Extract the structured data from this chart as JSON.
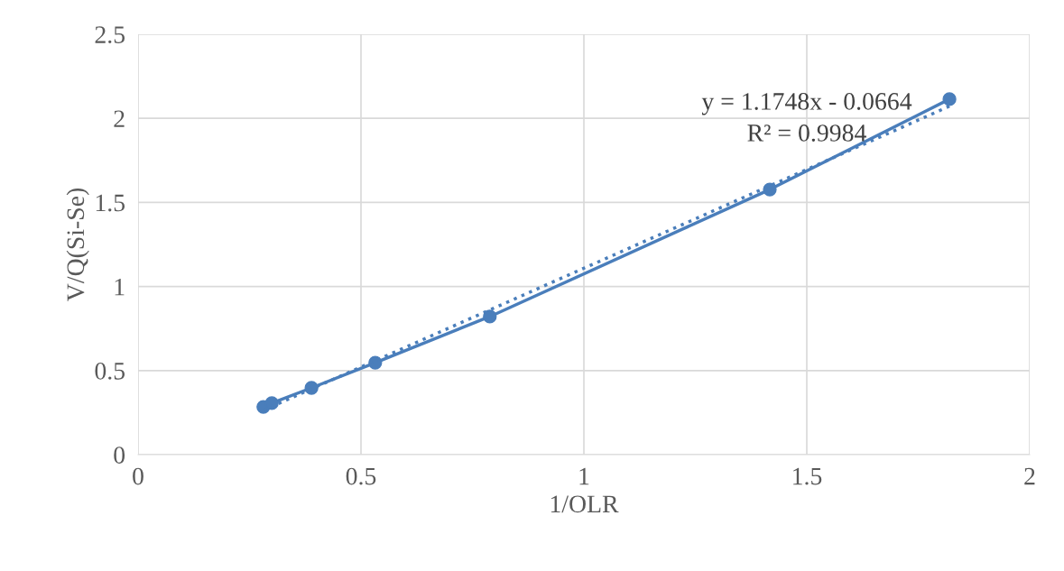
{
  "chart_data": {
    "type": "line",
    "xlabel": "1/OLR",
    "ylabel": "V/Q(Si-Se)",
    "series": [
      {
        "color": "#4a7ebb",
        "marker": "circle",
        "line_style": "solid",
        "x": [
          0.281,
          0.3,
          0.389,
          0.532,
          0.789,
          1.417,
          1.82
        ],
        "values": [
          0.284,
          0.306,
          0.397,
          0.547,
          0.821,
          1.577,
          2.114
        ]
      },
      {
        "color": "#4a7ebb",
        "marker": "none",
        "line_style": "dotted",
        "x": [
          0.281,
          1.82
        ],
        "values": [
          0.264,
          2.072
        ]
      }
    ],
    "annotations": [
      "y = 1.1748x - 0.0664",
      "R² = 0.9984"
    ],
    "xlim": [
      0,
      2
    ],
    "xticks": [
      0,
      0.5,
      1,
      1.5,
      2
    ],
    "ylim": [
      0,
      2.5
    ],
    "yticks": [
      0,
      0.5,
      1,
      1.5,
      2,
      2.5
    ],
    "grid": true
  }
}
